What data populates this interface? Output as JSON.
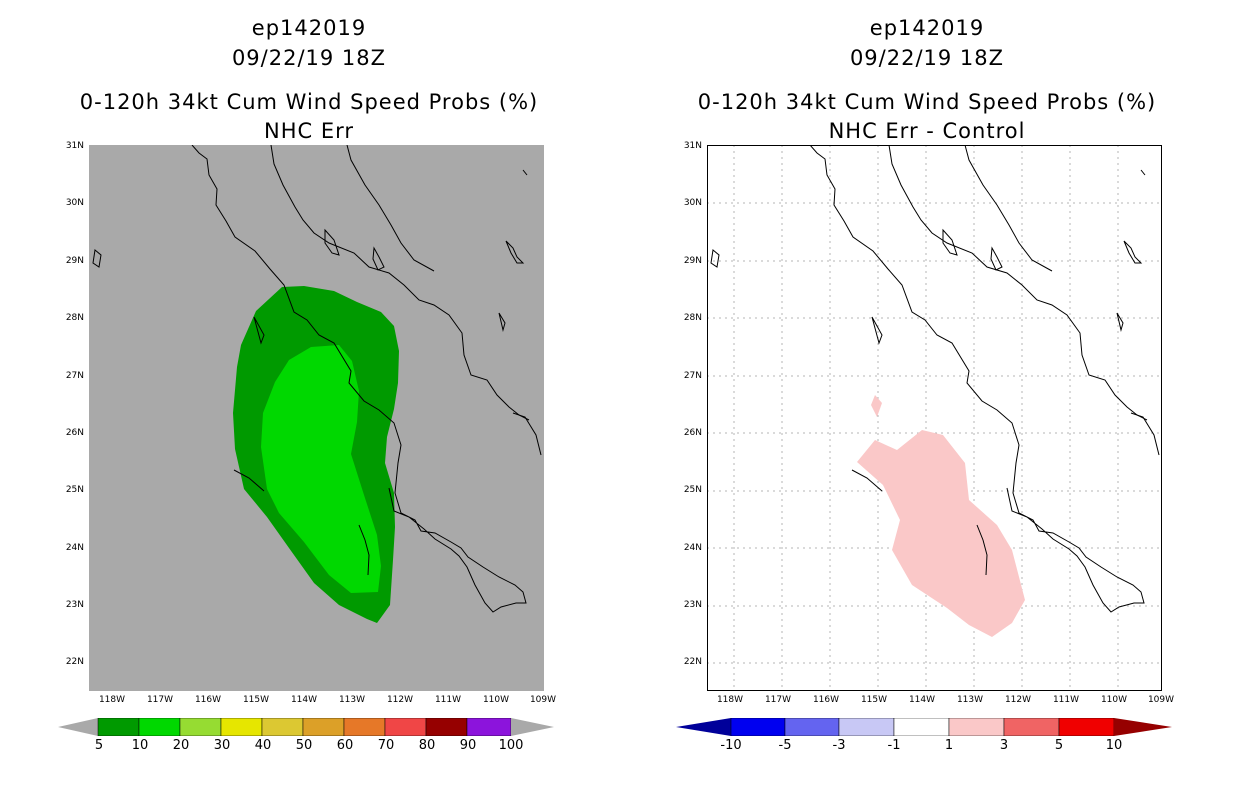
{
  "left": {
    "title_line1": "ep142019",
    "title_line2": "09/22/19 18Z",
    "title_line3": "0-120h 34kt Cum Wind Speed Probs (%)",
    "title_line4": "NHC Err",
    "colorbar_labels": [
      "5",
      "10",
      "20",
      "30",
      "40",
      "50",
      "60",
      "70",
      "80",
      "90",
      "100"
    ],
    "colorbar_colors": [
      "#009a00",
      "#00d800",
      "#96dc32",
      "#e6e600",
      "#dcc832",
      "#dca028",
      "#e67828",
      "#f04646",
      "#960000",
      "#8c14dc"
    ]
  },
  "right": {
    "title_line1": "ep142019",
    "title_line2": "09/22/19 18Z",
    "title_line3": "0-120h 34kt Cum Wind Speed Probs (%)",
    "title_line4": "NHC Err - Control",
    "colorbar_labels": [
      "-10",
      "-5",
      "-3",
      "-1",
      "1",
      "3",
      "5",
      "10"
    ],
    "colorbar_colors": [
      "#00009a",
      "#0000f0",
      "#6464f0",
      "#c8c8f5",
      "#ffffff",
      "#fac8c8",
      "#f06464",
      "#f00000",
      "#960000"
    ]
  },
  "axes": {
    "lat_labels": [
      "31N",
      "30N",
      "29N",
      "28N",
      "27N",
      "26N",
      "25N",
      "24N",
      "23N",
      "22N"
    ],
    "lon_labels": [
      "118W",
      "117W",
      "116W",
      "115W",
      "114W",
      "113W",
      "112W",
      "111W",
      "110W",
      "109W"
    ]
  },
  "colors": {
    "land_background": "#a9a9a9",
    "prob_5_10": "#009a00",
    "prob_10_20": "#00d800",
    "diff_1_3": "#fac8c8"
  }
}
